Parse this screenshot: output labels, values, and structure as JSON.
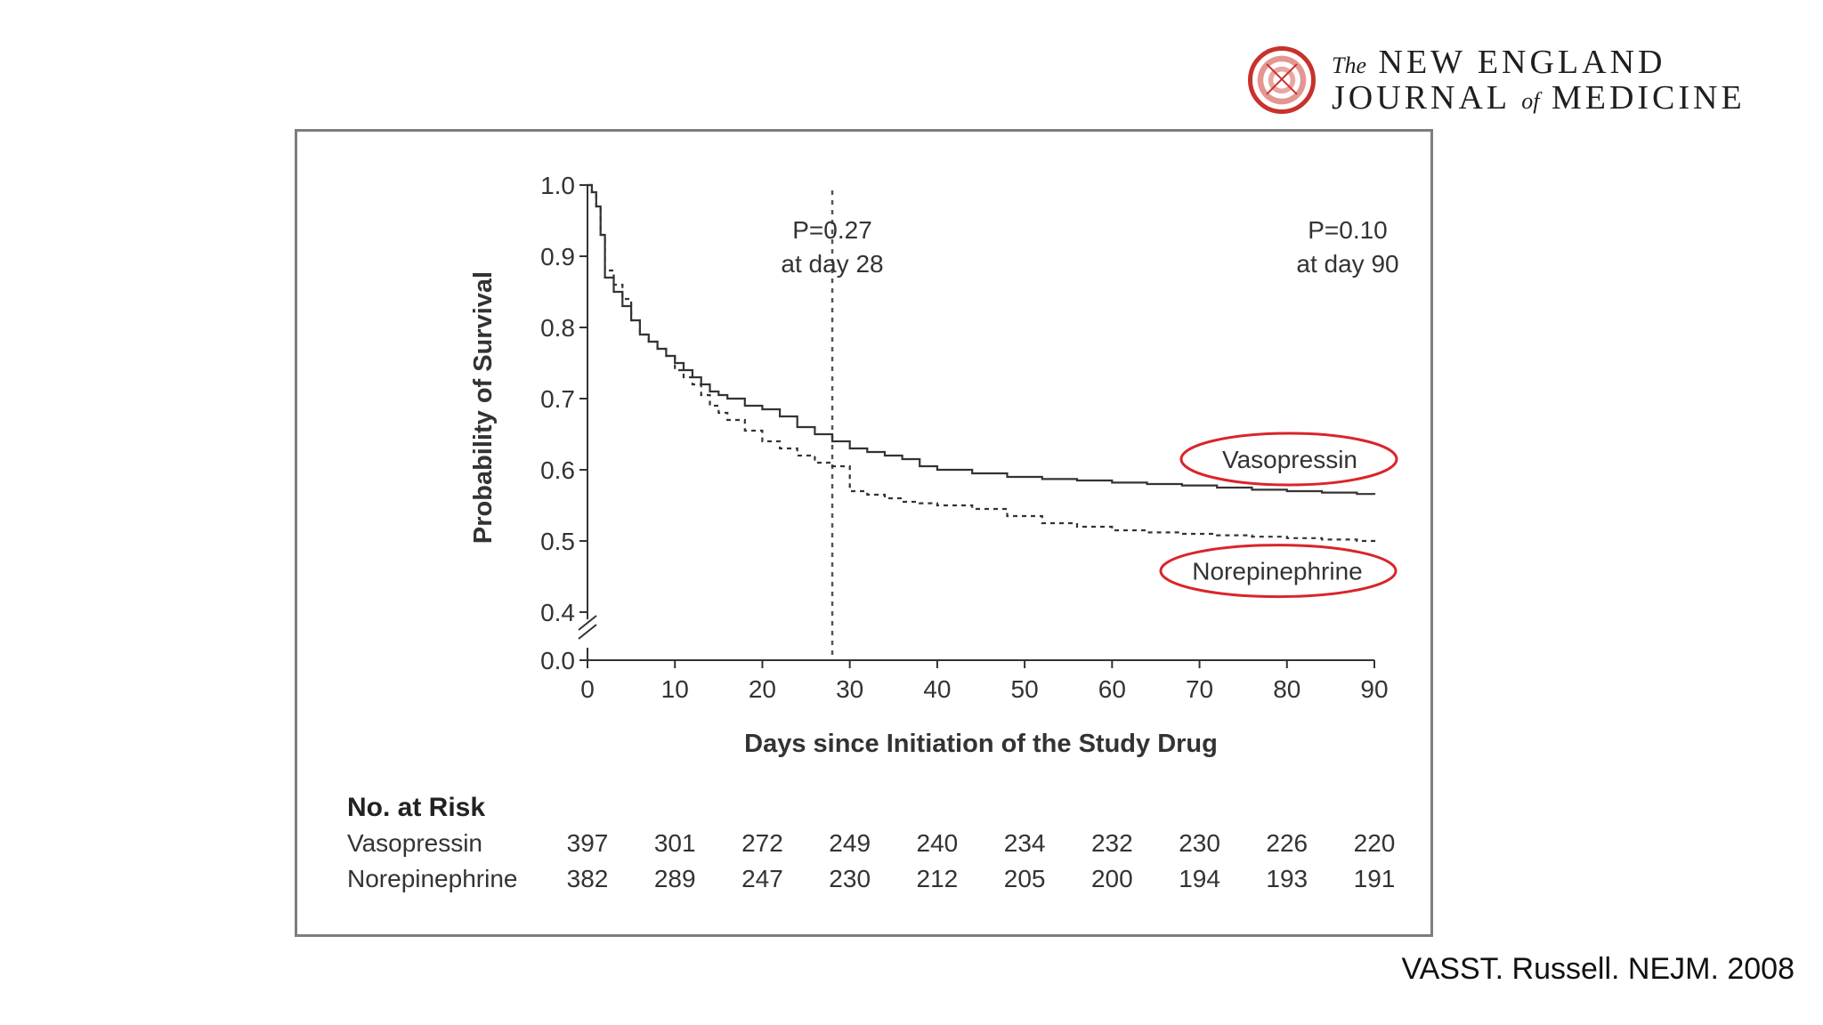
{
  "brand": {
    "the": "The",
    "line1": "NEW ENGLAND",
    "journal": "JOURNAL",
    "of": "of",
    "medicine": "MEDICINE",
    "seal_color": "#c8322c"
  },
  "citation": "VASST. Russell. NEJM. 2008",
  "chart_data": {
    "type": "line",
    "title": "",
    "xlabel": "Days since Initiation of the Study Drug",
    "ylabel": "Probability of Survival",
    "xlim": [
      0,
      90
    ],
    "ylim": [
      0.0,
      1.0
    ],
    "axis_break": "between 0.0 and 0.4",
    "x_ticks": [
      0,
      10,
      20,
      30,
      40,
      50,
      60,
      70,
      80,
      90
    ],
    "y_ticks": [
      "0.0",
      "0.4",
      "0.5",
      "0.6",
      "0.7",
      "0.8",
      "0.9",
      "1.0"
    ],
    "reference_line": {
      "x": 28,
      "style": "dotted"
    },
    "annotations": [
      {
        "line1": "P=0.27",
        "line2": "at day 28"
      },
      {
        "line1": "P=0.10",
        "line2": "at day 90"
      }
    ],
    "highlight_color": "#d9252a",
    "series": [
      {
        "name": "Vasopressin",
        "style": "solid",
        "x": [
          0,
          0.5,
          1,
          1.5,
          2,
          3,
          4,
          5,
          6,
          7,
          8,
          9,
          10,
          11,
          12,
          13,
          14,
          15,
          16,
          18,
          20,
          22,
          24,
          26,
          28,
          30,
          32,
          34,
          36,
          38,
          40,
          44,
          48,
          52,
          56,
          60,
          64,
          68,
          72,
          76,
          80,
          84,
          88,
          90
        ],
        "y": [
          1.0,
          0.99,
          0.97,
          0.93,
          0.87,
          0.85,
          0.83,
          0.81,
          0.79,
          0.78,
          0.77,
          0.76,
          0.75,
          0.74,
          0.73,
          0.72,
          0.71,
          0.705,
          0.7,
          0.69,
          0.685,
          0.675,
          0.66,
          0.65,
          0.64,
          0.63,
          0.625,
          0.62,
          0.615,
          0.605,
          0.6,
          0.595,
          0.59,
          0.587,
          0.585,
          0.582,
          0.58,
          0.578,
          0.575,
          0.572,
          0.57,
          0.568,
          0.566,
          0.565
        ]
      },
      {
        "name": "Norepinephrine",
        "style": "dashed",
        "x": [
          0,
          0.5,
          1,
          1.5,
          2,
          3,
          4,
          5,
          6,
          7,
          8,
          9,
          10,
          11,
          12,
          13,
          14,
          15,
          16,
          18,
          20,
          22,
          24,
          26,
          28,
          30,
          32,
          34,
          36,
          38,
          40,
          44,
          48,
          52,
          56,
          60,
          64,
          68,
          72,
          76,
          80,
          84,
          88,
          90
        ],
        "y": [
          1.0,
          0.99,
          0.97,
          0.93,
          0.88,
          0.86,
          0.84,
          0.81,
          0.79,
          0.78,
          0.77,
          0.76,
          0.74,
          0.73,
          0.72,
          0.705,
          0.69,
          0.68,
          0.67,
          0.655,
          0.64,
          0.63,
          0.62,
          0.61,
          0.605,
          0.57,
          0.565,
          0.56,
          0.555,
          0.553,
          0.55,
          0.545,
          0.535,
          0.525,
          0.52,
          0.515,
          0.512,
          0.51,
          0.508,
          0.506,
          0.504,
          0.502,
          0.5,
          0.498
        ]
      }
    ],
    "risk_table": {
      "title": "No. at Risk",
      "rows": [
        {
          "label": "Vasopressin",
          "values": [
            "397",
            "301",
            "272",
            "249",
            "240",
            "234",
            "232",
            "230",
            "226",
            "220"
          ]
        },
        {
          "label": "Norepinephrine",
          "values": [
            "382",
            "289",
            "247",
            "230",
            "212",
            "205",
            "200",
            "194",
            "193",
            "191"
          ]
        }
      ]
    }
  }
}
